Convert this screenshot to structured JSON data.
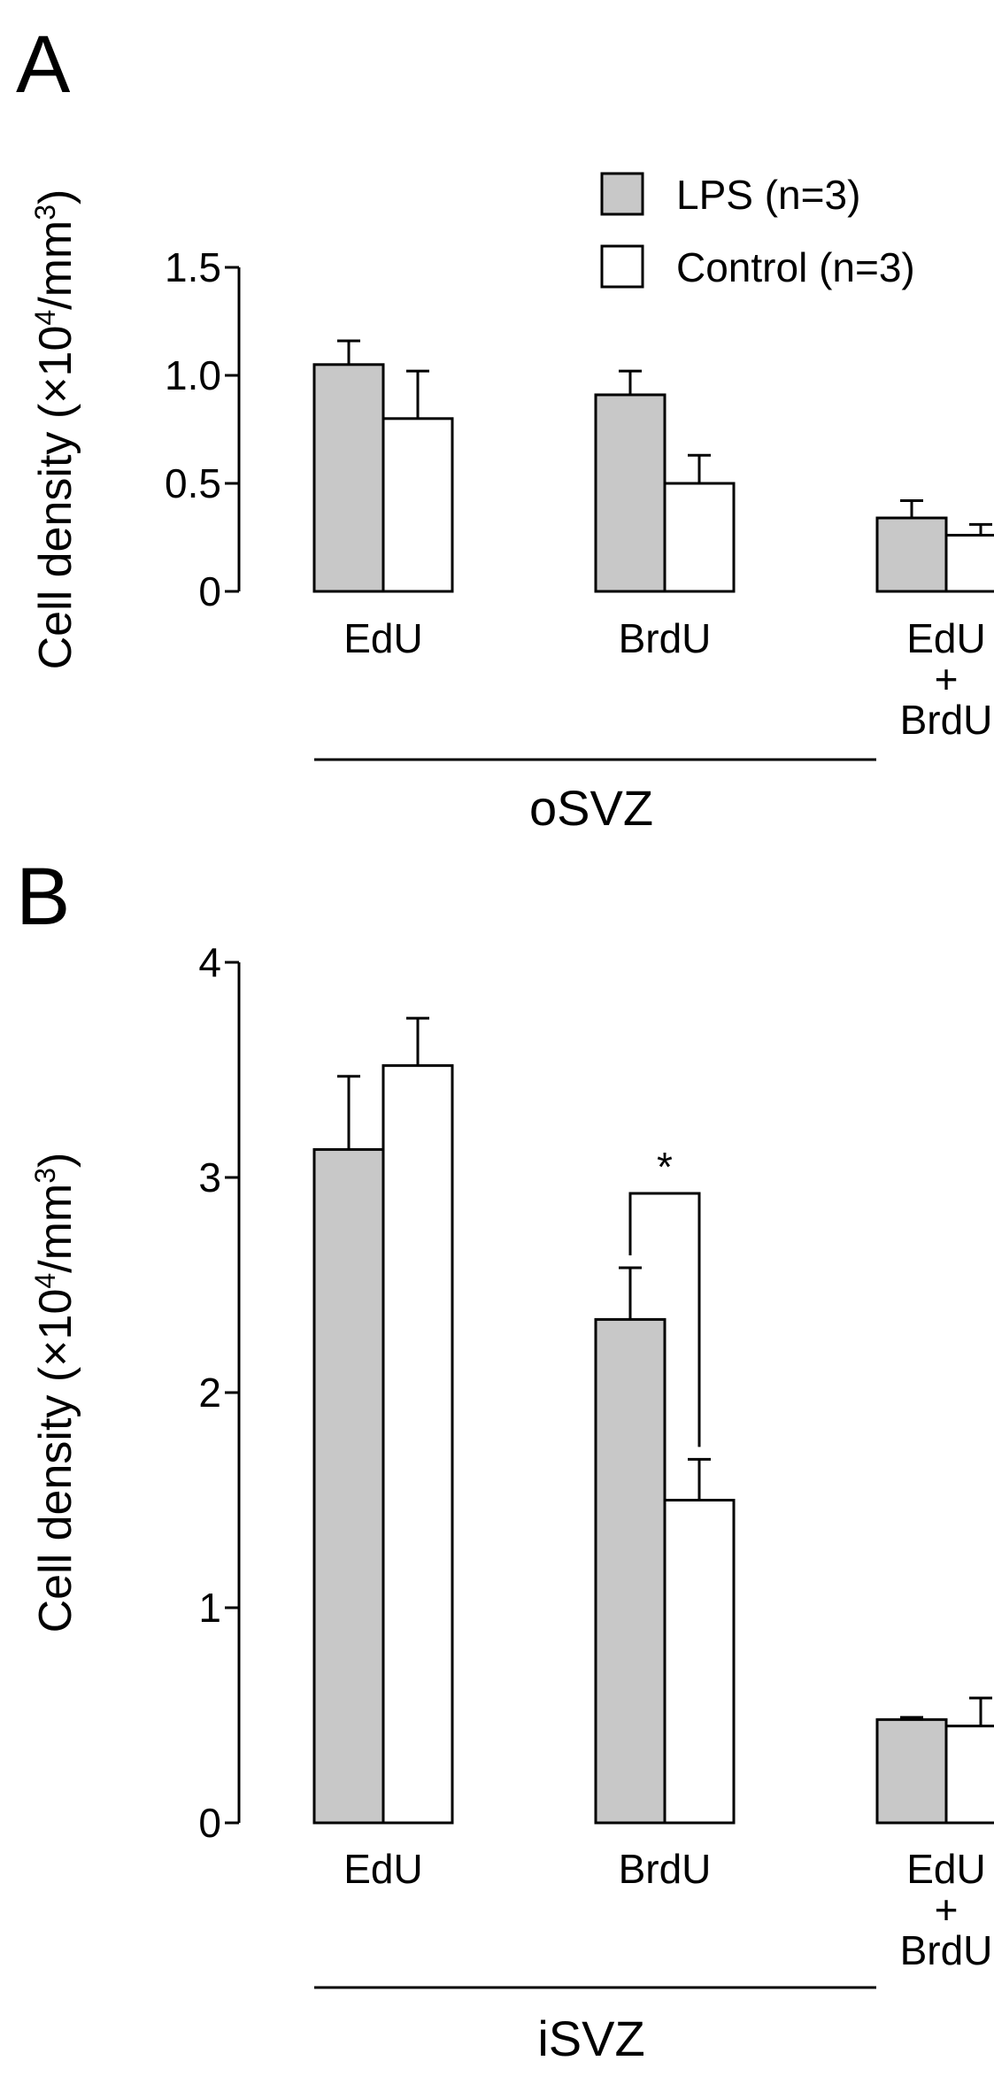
{
  "colors": {
    "lps": "#c8c8c8",
    "control": "#ffffff",
    "stroke": "#000000"
  },
  "legend": {
    "items": [
      {
        "label": "LPS (n=3)",
        "color_key": "lps"
      },
      {
        "label": "Control (n=3)",
        "color_key": "control"
      }
    ]
  },
  "chart_data": [
    {
      "type": "bar",
      "panel": "A",
      "region": "oSVZ",
      "ylabel": {
        "main": "Cell density (×10",
        "sup1": "4",
        "mid": "/mm",
        "sup2": "3",
        "end": ")"
      },
      "ylim": [
        0,
        1.5
      ],
      "yticks": [
        0,
        0.5,
        1.0,
        1.5
      ],
      "ytick_labels": [
        "0",
        "0.5",
        "1.0",
        "1.5"
      ],
      "categories": [
        [
          "EdU"
        ],
        [
          "BrdU"
        ],
        [
          "EdU",
          "+",
          "BrdU"
        ]
      ],
      "series": [
        {
          "name": "LPS (n=3)",
          "values": [
            1.05,
            0.91,
            0.34
          ],
          "errors": [
            0.11,
            0.11,
            0.08
          ]
        },
        {
          "name": "Control (n=3)",
          "values": [
            0.8,
            0.5,
            0.26
          ],
          "errors": [
            0.22,
            0.13,
            0.05
          ]
        }
      ],
      "significance": []
    },
    {
      "type": "bar",
      "panel": "B",
      "region": "iSVZ",
      "ylabel": {
        "main": "Cell density (×10",
        "sup1": "4",
        "mid": "/mm",
        "sup2": "3",
        "end": ")"
      },
      "ylim": [
        0,
        4
      ],
      "yticks": [
        0,
        1,
        2,
        3,
        4
      ],
      "ytick_labels": [
        "0",
        "1",
        "2",
        "3",
        "4"
      ],
      "categories": [
        [
          "EdU"
        ],
        [
          "BrdU"
        ],
        [
          "EdU",
          "+",
          "BrdU"
        ]
      ],
      "series": [
        {
          "name": "LPS (n=3)",
          "values": [
            3.13,
            2.34,
            0.48
          ],
          "errors": [
            0.34,
            0.24,
            0.01
          ]
        },
        {
          "name": "Control (n=3)",
          "values": [
            3.52,
            1.5,
            0.45
          ],
          "errors": [
            0.22,
            0.19,
            0.13
          ]
        }
      ],
      "significance": [
        {
          "category_index": 1,
          "label": "*"
        }
      ]
    }
  ]
}
